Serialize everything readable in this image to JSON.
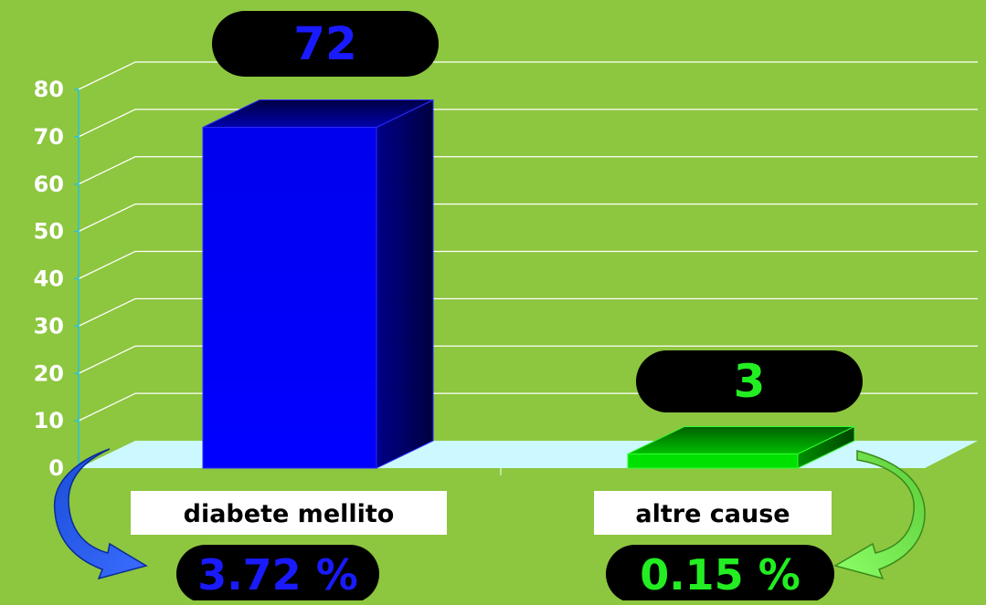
{
  "chart_data": {
    "type": "bar",
    "categories": [
      "diabete mellito",
      "altre cause"
    ],
    "values": [
      72,
      3
    ],
    "value_labels": [
      "72",
      "3"
    ],
    "percent_labels": [
      "3.72 %",
      "0.15 %"
    ],
    "title": "",
    "xlabel": "",
    "ylabel": "",
    "ylim": [
      0,
      80
    ],
    "yticks": [
      0,
      10,
      20,
      30,
      40,
      50,
      60,
      70,
      80
    ],
    "grid": true,
    "colors": {
      "background": "#8dc63f",
      "series": [
        "#0000ff",
        "#00e000"
      ],
      "value_label_text": [
        "#1a1aff",
        "#22ee22"
      ],
      "pill": "#000000",
      "axis_text": "#ffffff",
      "floor": "#ccf8ff",
      "gridline": "#ffffff"
    }
  }
}
